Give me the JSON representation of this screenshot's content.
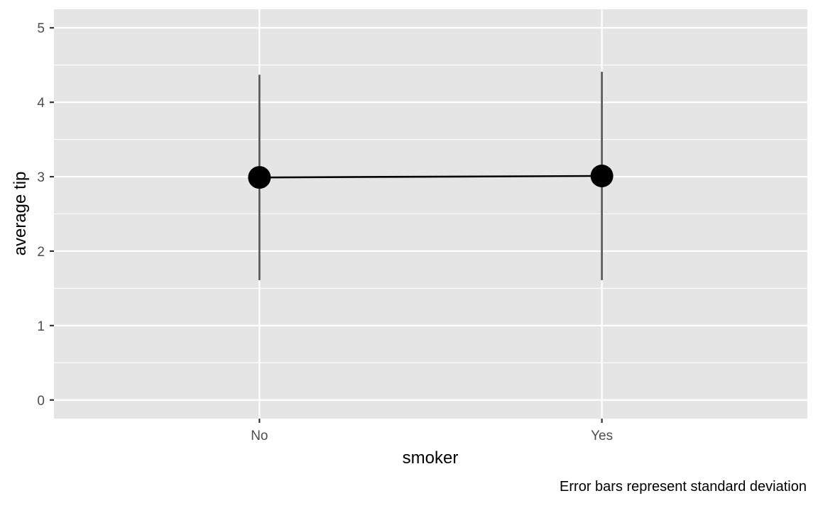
{
  "chart_data": {
    "type": "line",
    "title": "",
    "xlabel": "smoker",
    "ylabel": "average tip",
    "caption": "Error bars represent standard deviation",
    "categories": [
      "No",
      "Yes"
    ],
    "series": [
      {
        "values": [
          2.99,
          3.01
        ],
        "error_lower": [
          1.61,
          1.61
        ],
        "error_upper": [
          4.37,
          4.41
        ]
      }
    ],
    "y_ticks": [
      0,
      1,
      2,
      3,
      4,
      5
    ],
    "ylim": [
      -0.25,
      5.25
    ],
    "grid": true,
    "colors": {
      "panel_background": "#e5e5e5",
      "grid_major": "#ffffff",
      "point": "#000000",
      "line": "#000000",
      "error_bar": "#555555",
      "axis_text": "#4d4d4d",
      "title_text": "#000000"
    }
  }
}
